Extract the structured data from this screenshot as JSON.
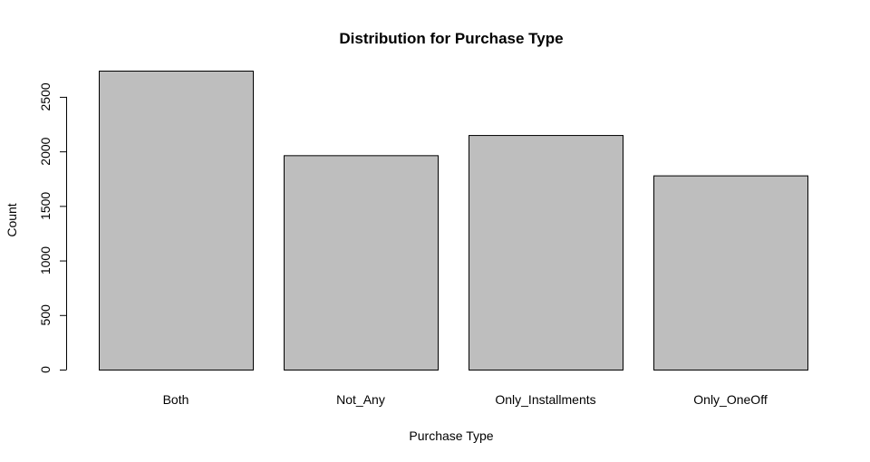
{
  "chart_data": {
    "type": "bar",
    "title": "Distribution for Purchase Type",
    "xlabel": "Purchase Type",
    "ylabel": "Count",
    "categories": [
      "Both",
      "Not_Any",
      "Only_Installments",
      "Only_OneOff"
    ],
    "values": [
      2740,
      1965,
      2150,
      1780
    ],
    "ylim": [
      0,
      2740
    ],
    "yticks": [
      0,
      500,
      1000,
      1500,
      2000,
      2500
    ],
    "ytick_labels": [
      "0",
      "500",
      "1000",
      "1500",
      "2000",
      "2500"
    ],
    "grid": false,
    "legend": "none",
    "colors": {
      "bar_fill": "#bebebe",
      "bar_stroke": "#000000",
      "text": "#000000",
      "background": "#ffffff"
    }
  }
}
